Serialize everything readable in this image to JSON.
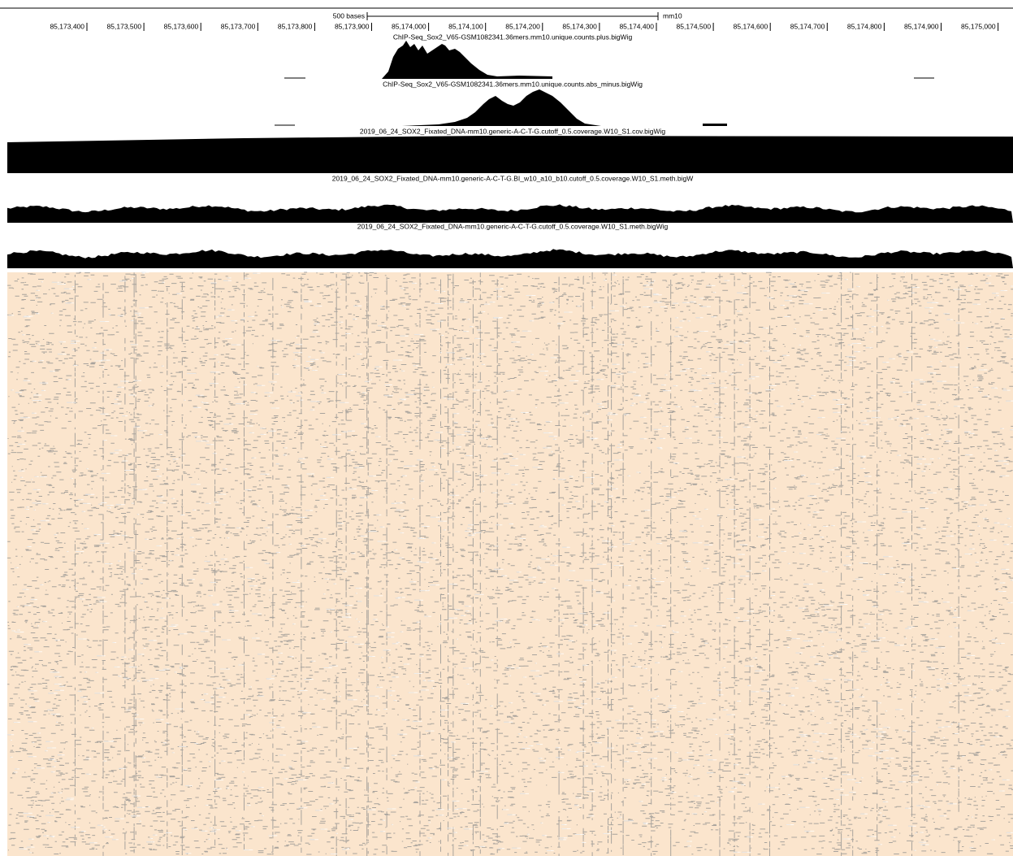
{
  "ruler": {
    "scale_label": "500 bases",
    "assembly": "mm10",
    "positions": [
      "85,173,400",
      "85,173,500",
      "85,173,600",
      "85,173,700",
      "85,173,800",
      "85,173,900",
      "85,174,000",
      "85,174,100",
      "85,174,200",
      "85,174,300",
      "85,174,400",
      "85,174,500",
      "85,174,600",
      "85,174,700",
      "85,174,800",
      "85,174,900",
      "85,175,000"
    ]
  },
  "tracks": [
    {
      "label": "ChIP-Seq_Sox2_V65-GSM1082341.36mers.mm10.unique.counts.plus.bigWig"
    },
    {
      "label": "ChIP-Seq_Sox2_V65-GSM1082341.36mers.mm10.unique.counts.abs_minus.bigWig"
    },
    {
      "label": "2019_06_24_SOX2_Fixated_DNA-mm10.generic-A-C-T-G.cutoff_0.5.coverage.W10_S1.cov.bigWig"
    },
    {
      "label": "2019_06_24_SOX2_Fixated_DNA-mm10.generic-A-C-T-G.BI_w10_a10_b10.cutoff_0.5.coverage.W10_S1.meth.bigW"
    },
    {
      "label": "2019_06_24_SOX2_Fixated_DNA-mm10.generic-A-C-T-G.cutoff_0.5.coverage.W10_S1.meth.bigWig"
    }
  ]
}
